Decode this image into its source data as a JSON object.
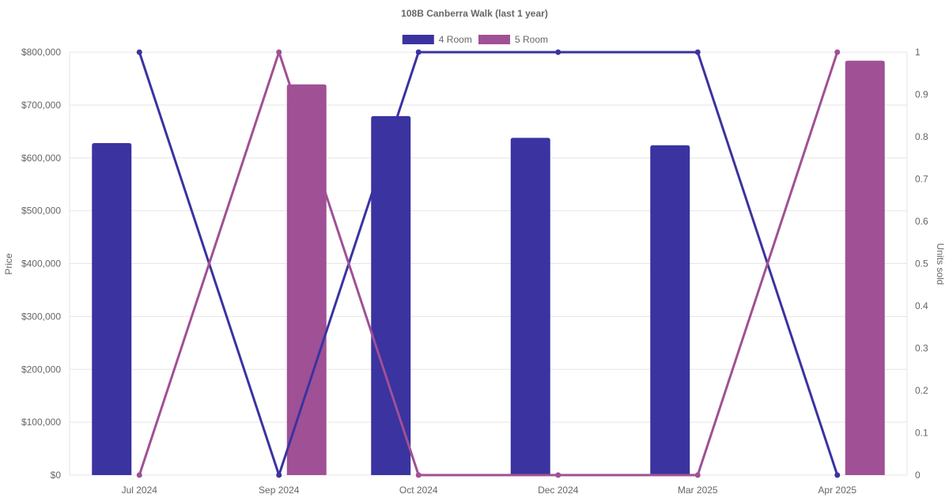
{
  "chart_data": {
    "type": "bar",
    "title": "108B Canberra Walk (last 1 year)",
    "categories": [
      "Jul 2024",
      "Sep 2024",
      "Oct 2024",
      "Dec 2024",
      "Mar 2025",
      "Apr 2025"
    ],
    "series": [
      {
        "name": "4 Room",
        "color": "#3a33a0",
        "price": [
          628000,
          null,
          679000,
          638000,
          624000,
          null
        ],
        "units_sold": [
          1,
          0,
          1,
          1,
          1,
          0
        ]
      },
      {
        "name": "5 Room",
        "color": "#a05095",
        "price": [
          null,
          739000,
          null,
          null,
          null,
          784000
        ],
        "units_sold": [
          0,
          1,
          0,
          0,
          0,
          1
        ]
      }
    ],
    "ylabel": "Price",
    "y2label": "Units sold",
    "ylim": [
      0,
      800000
    ],
    "y2lim": [
      0,
      1
    ],
    "yticks": [
      "$0",
      "$100,000",
      "$200,000",
      "$300,000",
      "$400,000",
      "$500,000",
      "$600,000",
      "$700,000",
      "$800,000"
    ],
    "y2ticks": [
      "0",
      "0.1",
      "0.2",
      "0.3",
      "0.4",
      "0.5",
      "0.6",
      "0.7",
      "0.8",
      "0.9",
      "1"
    ],
    "grid": true,
    "legend": "top-center"
  }
}
